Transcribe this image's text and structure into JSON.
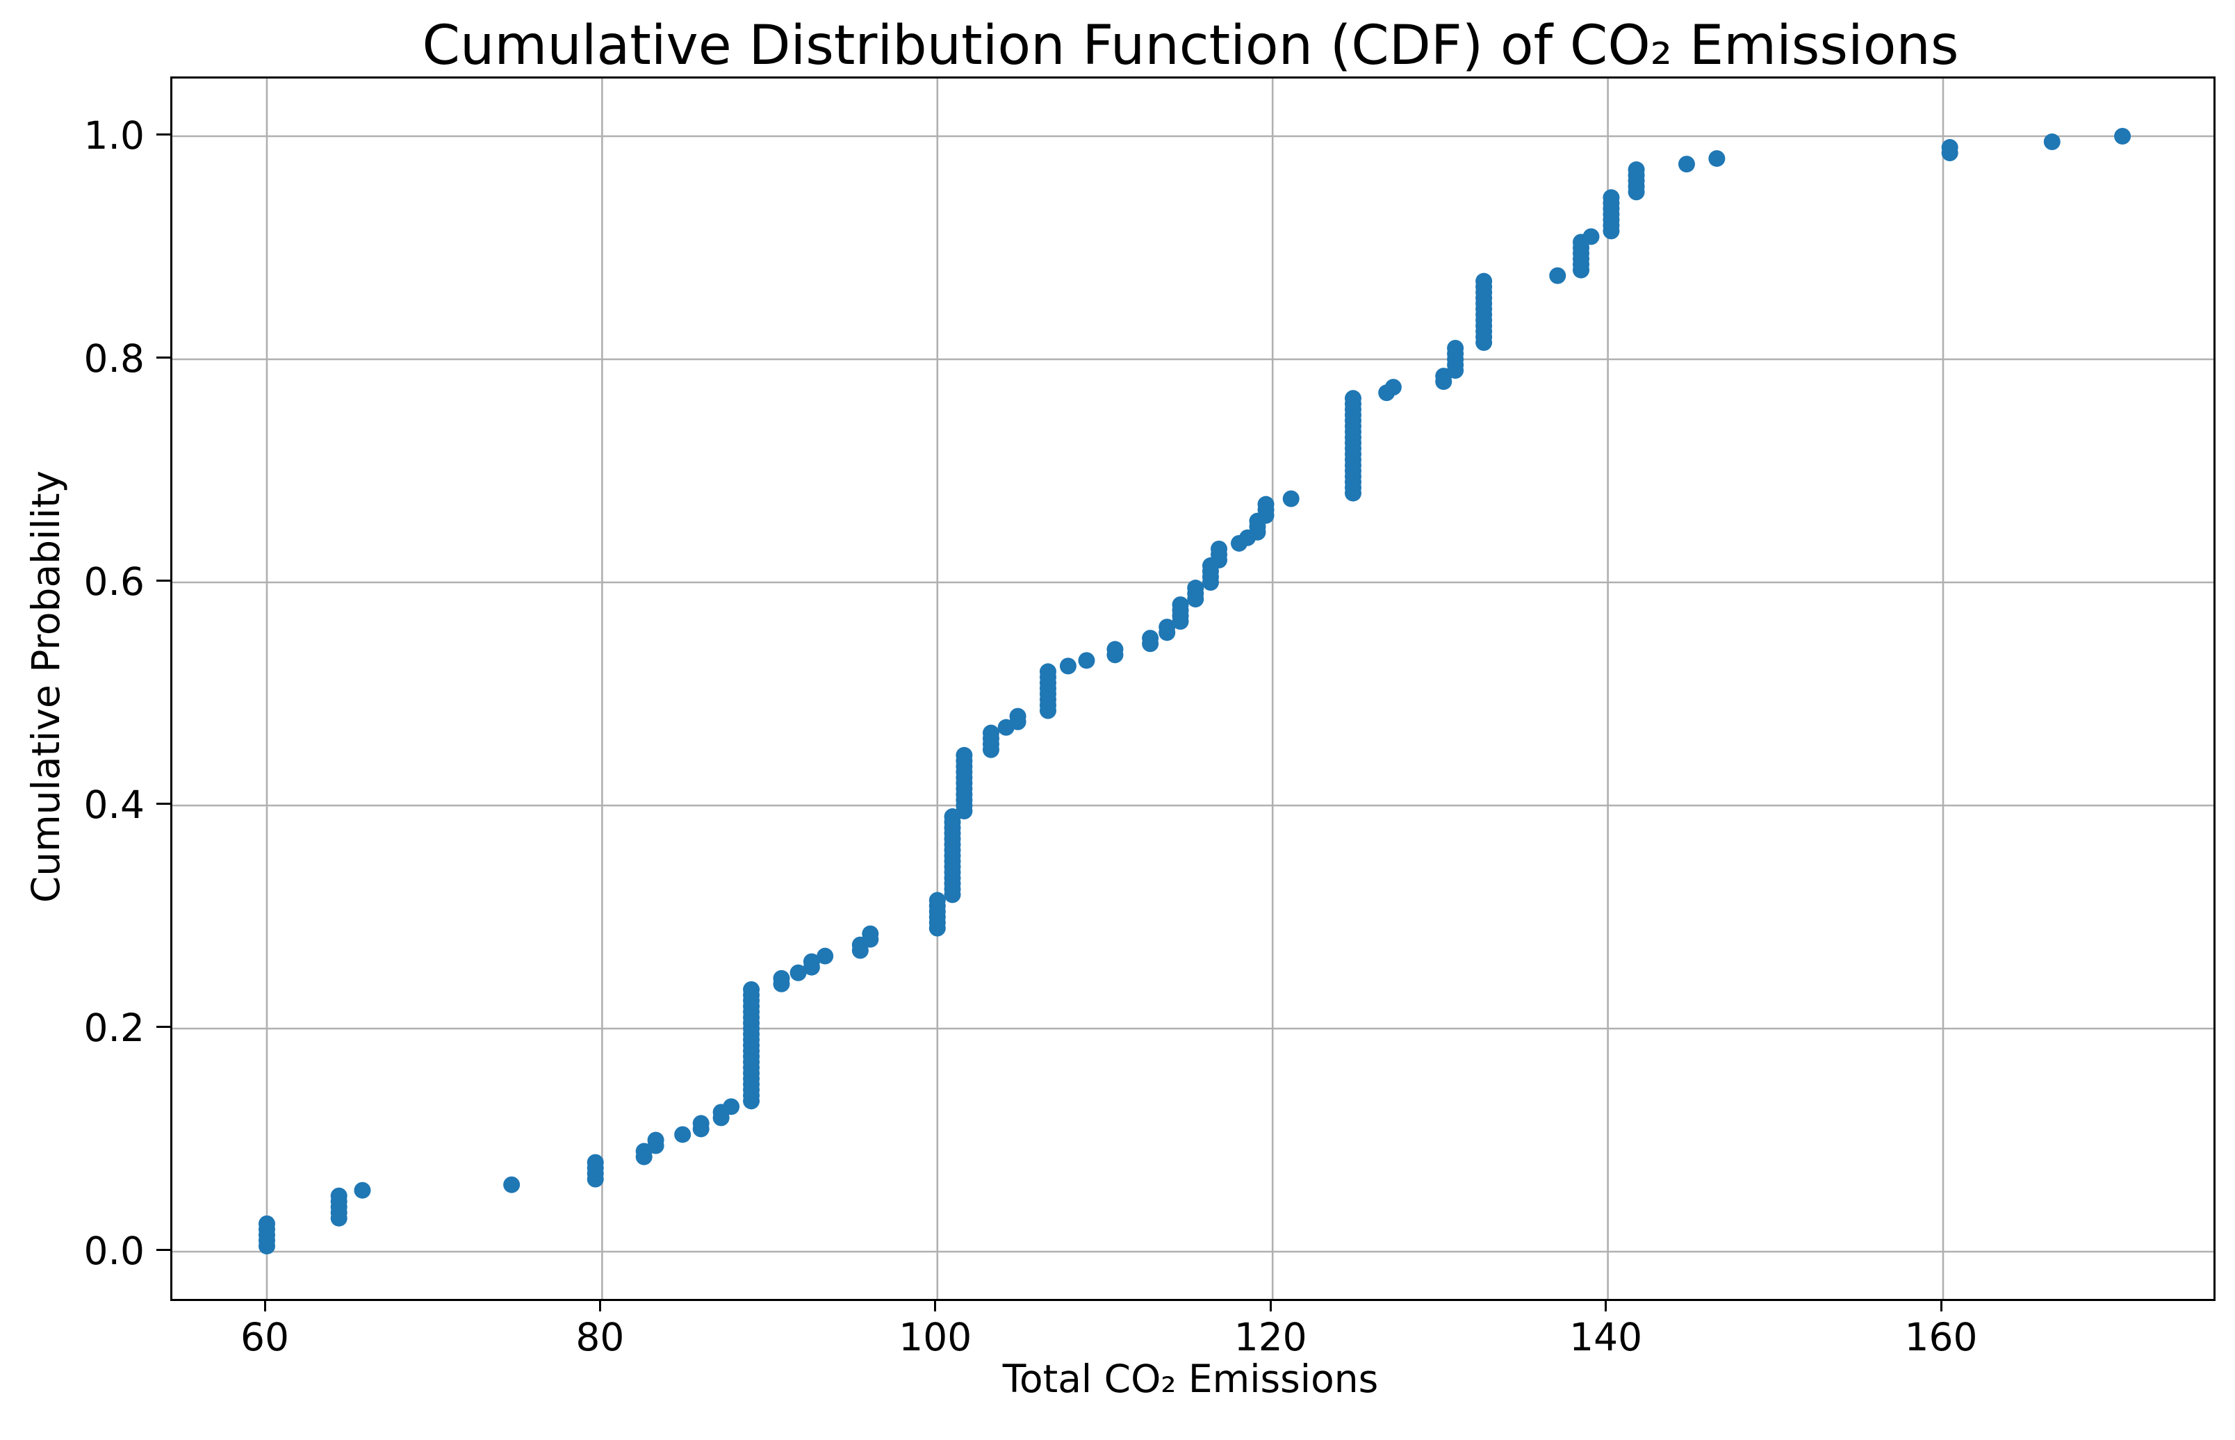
{
  "chart_data": {
    "type": "scatter",
    "title": "Cumulative Distribution Function (CDF) of CO₂ Emissions",
    "xlabel": "Total CO₂ Emissions",
    "ylabel": "Cumulative Probability",
    "x_ticks": [
      60,
      80,
      100,
      120,
      140,
      160
    ],
    "y_ticks": [
      0.0,
      0.2,
      0.4,
      0.6,
      0.8,
      1.0
    ],
    "xlim": [
      54.3,
      176.3
    ],
    "ylim": [
      -0.042,
      1.052
    ],
    "grid": true,
    "legend": "none",
    "marker_color": "#1f77b4",
    "grid_color": "#b0b0b0",
    "spine_color": "#000000",
    "n_points": 200,
    "y_rule": "CDF: the i-th smallest of the 200 x-values is plotted at cumulative probability i/200",
    "groups_format": "[x_value, number_of_points_at_that_x]",
    "groups": [
      [
        60.0,
        5
      ],
      [
        64.3,
        5
      ],
      [
        65.7,
        1
      ],
      [
        74.6,
        1
      ],
      [
        79.6,
        4
      ],
      [
        82.5,
        2
      ],
      [
        83.2,
        2
      ],
      [
        84.8,
        1
      ],
      [
        85.9,
        2
      ],
      [
        87.1,
        2
      ],
      [
        87.7,
        1
      ],
      [
        88.9,
        21
      ],
      [
        90.7,
        2
      ],
      [
        91.7,
        1
      ],
      [
        92.5,
        2
      ],
      [
        93.3,
        1
      ],
      [
        95.4,
        2
      ],
      [
        96.0,
        2
      ],
      [
        100.0,
        6
      ],
      [
        100.9,
        15
      ],
      [
        101.6,
        11
      ],
      [
        103.2,
        4
      ],
      [
        104.1,
        1
      ],
      [
        104.8,
        2
      ],
      [
        106.6,
        8
      ],
      [
        107.8,
        1
      ],
      [
        108.9,
        1
      ],
      [
        110.6,
        2
      ],
      [
        112.7,
        2
      ],
      [
        113.7,
        2
      ],
      [
        114.5,
        4
      ],
      [
        115.4,
        3
      ],
      [
        116.3,
        4
      ],
      [
        116.8,
        3
      ],
      [
        118.0,
        1
      ],
      [
        118.5,
        1
      ],
      [
        119.1,
        3
      ],
      [
        119.6,
        3
      ],
      [
        121.1,
        1
      ],
      [
        124.8,
        18
      ],
      [
        126.8,
        1
      ],
      [
        127.2,
        1
      ],
      [
        130.2,
        2
      ],
      [
        130.9,
        5
      ],
      [
        132.6,
        12
      ],
      [
        137.0,
        1
      ],
      [
        138.4,
        6
      ],
      [
        139.0,
        1
      ],
      [
        140.2,
        7
      ],
      [
        141.7,
        5
      ],
      [
        144.7,
        1
      ],
      [
        146.5,
        1
      ],
      [
        160.4,
        2
      ],
      [
        166.5,
        1
      ],
      [
        170.7,
        1
      ]
    ]
  }
}
